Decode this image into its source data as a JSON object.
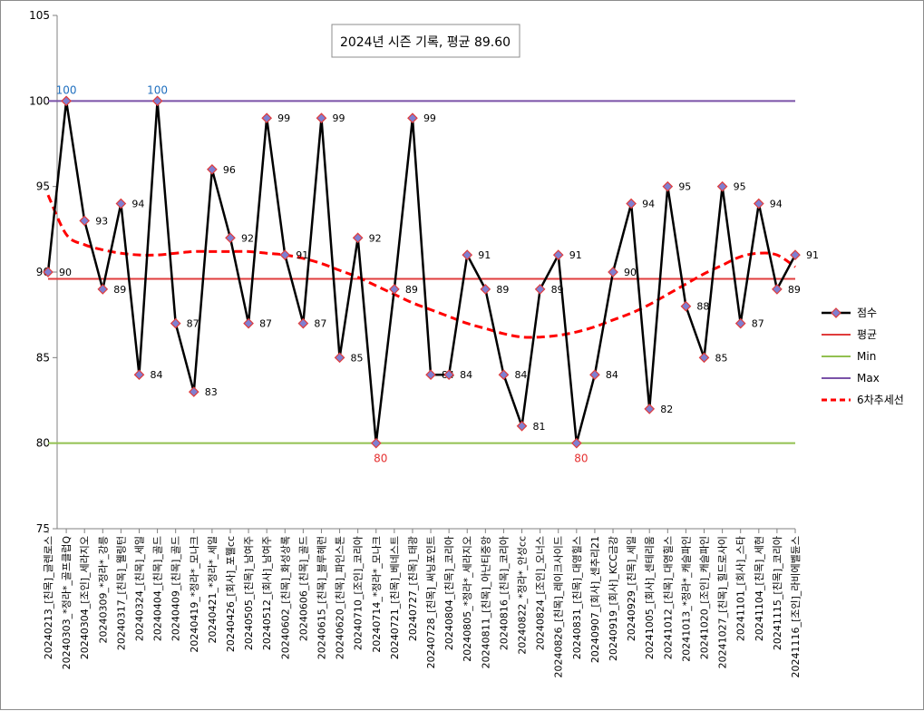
{
  "chart_data": {
    "type": "line",
    "title": "2024년 시즌 기록, 평균 89.60",
    "ylim": [
      75,
      105
    ],
    "yticks": [
      75,
      80,
      85,
      90,
      95,
      100,
      105
    ],
    "categories": [
      "20240213_[친목]_글렌로스",
      "20240303_*정라*_골프클럽Q",
      "20240304_[조인]_세라지오",
      "20240309_*정라*_강릉",
      "20240317_[친목]_웰링턴",
      "20240324_[친목]_세일",
      "20240404_[친목]_골드",
      "20240409_[친목]_골드",
      "20240419_*정라*_모나크",
      "20240421_*정라*_세일",
      "20240426_[회사]_포웰cc",
      "20240505_[친목]_남여주",
      "20240512_[회사]_남여주",
      "20240602_[친목]_화성상록",
      "20240606_[친목]_골드",
      "20240615_[친목]_블루헤런",
      "20240620_[친목]_파인스톤",
      "20240710_[조인]_코리아",
      "20240714_*정라*_모나크",
      "20240721_[친목]_베네스트",
      "20240727_[친목]_태광",
      "20240728_[친목]_써닝포인트",
      "20240804_[친목]_코리아",
      "20240805_*정라*_세라지오",
      "20240811_[친목]_아난티중앙",
      "20240816_[친목]_코리아",
      "20240822_*정라*_안성cc",
      "20240824_[조인]_오너스",
      "20240826_[친목]_레이크사이드",
      "20240831_[친목]_대영힐스",
      "20240907_[회사]_센추리21",
      "20240919_[회사]_KCC금강",
      "20240929_[친목]_세일",
      "20241005_[회사]_센테리움",
      "20241012_[친목]_대영힐스",
      "20241013_*정라*_캐슬파인",
      "20241020_[조인]_캐슬파인",
      "20241027_[친목]_힐드로사이",
      "20241101_[회사]_스타",
      "20241104_[친목]_세현",
      "20241115_[친목]_코리아",
      "20241116_[조인]_라비에벨듄스"
    ],
    "series": [
      {
        "name": "점수",
        "color": "#000000",
        "values": [
          90,
          100,
          93,
          89,
          94,
          84,
          100,
          87,
          83,
          96,
          92,
          87,
          99,
          91,
          87,
          99,
          85,
          92,
          80,
          89,
          99,
          84,
          84,
          91,
          89,
          84,
          81,
          89,
          91,
          80,
          84,
          90,
          94,
          82,
          95,
          88,
          85,
          95,
          87,
          94,
          89,
          91
        ]
      },
      {
        "name": "평균",
        "color": "#e03c3c",
        "value": 89.6
      },
      {
        "name": "Min",
        "color": "#92c050",
        "value": 80
      },
      {
        "name": "Max",
        "color": "#7a52a8",
        "value": 100
      },
      {
        "name": "6차추세선",
        "color": "#ff0000",
        "style": "dashed",
        "values": [
          94.5,
          92.2,
          91.6,
          91.3,
          91.1,
          91.0,
          91.0,
          91.1,
          91.2,
          91.2,
          91.2,
          91.2,
          91.1,
          91.0,
          90.8,
          90.5,
          90.1,
          89.7,
          89.2,
          88.7,
          88.2,
          87.8,
          87.4,
          87.0,
          86.7,
          86.4,
          86.2,
          86.2,
          86.3,
          86.5,
          86.8,
          87.2,
          87.6,
          88.1,
          88.7,
          89.3,
          89.9,
          90.4,
          90.9,
          91.1,
          91.0,
          90.3
        ]
      }
    ],
    "data_labels": [
      "90",
      "100",
      "93",
      "89",
      "94",
      "84",
      "100",
      "87",
      "83",
      "96",
      "92",
      "87",
      "99",
      "91",
      "87",
      "99",
      "85",
      "92",
      "80",
      "89",
      "99",
      "84",
      "84",
      "91",
      "89",
      "84",
      "81",
      "89",
      "91",
      "80",
      "84",
      "90",
      "94",
      "82",
      "95",
      "88",
      "85",
      "95",
      "87",
      "94",
      "89",
      "91"
    ],
    "legend": [
      {
        "name": "점수",
        "color": "#000000"
      },
      {
        "name": "평균",
        "color": "#e03c3c"
      },
      {
        "name": "Min",
        "color": "#92c050"
      },
      {
        "name": "Max",
        "color": "#7a52a8"
      },
      {
        "name": "6차추세선",
        "color": "#ff0000"
      }
    ],
    "legend_position": "right",
    "grid": false,
    "marker_fill": "#7f7fd1",
    "marker_edge": "#e03c3c"
  }
}
